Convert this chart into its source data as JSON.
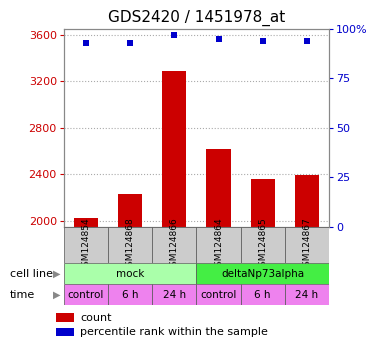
{
  "title": "GDS2420 / 1451978_at",
  "samples": [
    "GSM124854",
    "GSM124868",
    "GSM124866",
    "GSM124864",
    "GSM124865",
    "GSM124867"
  ],
  "counts": [
    2020,
    2230,
    3290,
    2620,
    2360,
    2390
  ],
  "percentile_ranks": [
    93,
    93,
    97,
    95,
    94,
    94
  ],
  "ylim_left": [
    1950,
    3650
  ],
  "ylim_right": [
    0,
    100
  ],
  "yticks_left": [
    2000,
    2400,
    2800,
    3200,
    3600
  ],
  "yticks_right": [
    0,
    25,
    50,
    75,
    100
  ],
  "ytick_right_labels": [
    "0",
    "25",
    "50",
    "75",
    "100%"
  ],
  "cell_line_groups": [
    {
      "label": "mock",
      "start": 0,
      "end": 3,
      "color": "#aaffaa"
    },
    {
      "label": "deltaNp73alpha",
      "start": 3,
      "end": 6,
      "color": "#44ee44"
    }
  ],
  "time_labels": [
    "control",
    "6 h",
    "24 h",
    "control",
    "6 h",
    "24 h"
  ],
  "bar_color": "#cc0000",
  "dot_color": "#0000cc",
  "bar_width": 0.55,
  "grid_color": "#aaaaaa",
  "sample_box_color": "#cccccc",
  "ylabel_left_color": "#cc0000",
  "ylabel_right_color": "#0000cc",
  "title_fontsize": 11,
  "tick_fontsize": 8,
  "sample_fontsize": 6.5,
  "legend_fontsize": 8,
  "row_label_fontsize": 8,
  "cell_fontsize": 7.5
}
